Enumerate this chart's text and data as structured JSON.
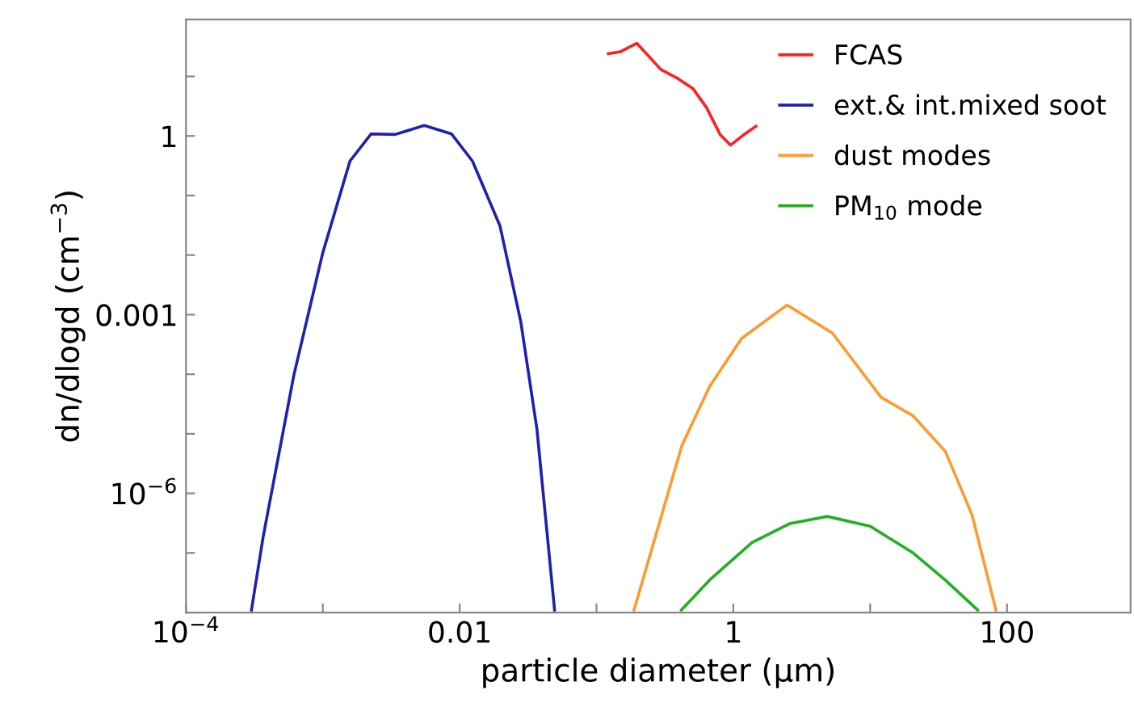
{
  "chart_data": {
    "type": "line",
    "xlabel": "particle diameter (μm)",
    "ylabel": "dn/dlogd (cm$^{−3}$)",
    "log": "xy",
    "legend": "top right",
    "grid": false,
    "xlim": [
      0.0001,
      800
    ],
    "ylim": [
      1e-08,
      90
    ],
    "xticks": [
      {
        "value": 0.0001,
        "label": "10$^{−4}$"
      },
      {
        "value": 0.001,
        "label": null
      },
      0.01,
      {
        "value": 0.1,
        "label": null
      },
      1,
      {
        "value": 10,
        "label": null
      },
      100
    ],
    "yticks": [
      {
        "value": 1e-08,
        "label": null
      },
      {
        "value": 1e-07,
        "label": null
      },
      {
        "value": 1e-06,
        "label": "10$^{−6}$"
      },
      {
        "value": 1e-05,
        "label": null
      },
      {
        "value": 0.0001,
        "label": null
      },
      0.001,
      {
        "value": 0.01,
        "label": null
      },
      {
        "value": 0.1,
        "label": null
      },
      1,
      {
        "value": 10,
        "label": null
      }
    ],
    "series": [
      {
        "name": "FCAS",
        "color": "#ff2020",
        "x": [
          0.122,
          0.15,
          0.197,
          0.296,
          0.387,
          0.508,
          0.637,
          0.8,
          0.955,
          1.2,
          1.46
        ],
        "values": [
          24,
          26,
          36,
          13,
          9.4,
          6.2,
          3.0,
          1.06,
          0.7,
          1.06,
          1.45
        ]
      },
      {
        "name": "ext.& int.mixed soot",
        "color": "#2020b0",
        "x": [
          0.000301,
          0.000367,
          0.000614,
          0.001,
          0.00158,
          0.00225,
          0.00338,
          0.00551,
          0.00873,
          0.0124,
          0.0197,
          0.028,
          0.0367,
          0.0494
        ],
        "values": [
          1.1e-08,
          1.9e-07,
          9.6e-05,
          0.011,
          0.38,
          1.08,
          1.06,
          1.5,
          1.08,
          0.38,
          0.031,
          0.00075,
          1.2e-05,
          1.1e-08
        ]
      },
      {
        "name": "dust modes",
        "color": "#ff9a30",
        "x": [
          0.188,
          0.27,
          0.42,
          0.67,
          1.15,
          2.47,
          5.3,
          12,
          20.6,
          35.4,
          55.6,
          83
        ],
        "values": [
          1.1e-08,
          1.9e-07,
          6.3e-06,
          6.2e-05,
          0.0004,
          0.00145,
          0.00049,
          4.1e-05,
          2e-05,
          5.1e-06,
          4.3e-07,
          1.1e-08
        ]
      },
      {
        "name": "PM$_{10}$ mode",
        "color": "#20b020",
        "x": [
          0.417,
          0.67,
          1.37,
          2.58,
          4.85,
          10,
          20.6,
          35.4,
          61
        ],
        "values": [
          1.1e-08,
          3.5e-08,
          1.5e-07,
          3.1e-07,
          4.1e-07,
          2.8e-07,
          1e-07,
          3.5e-08,
          1.1e-08
        ]
      }
    ]
  }
}
